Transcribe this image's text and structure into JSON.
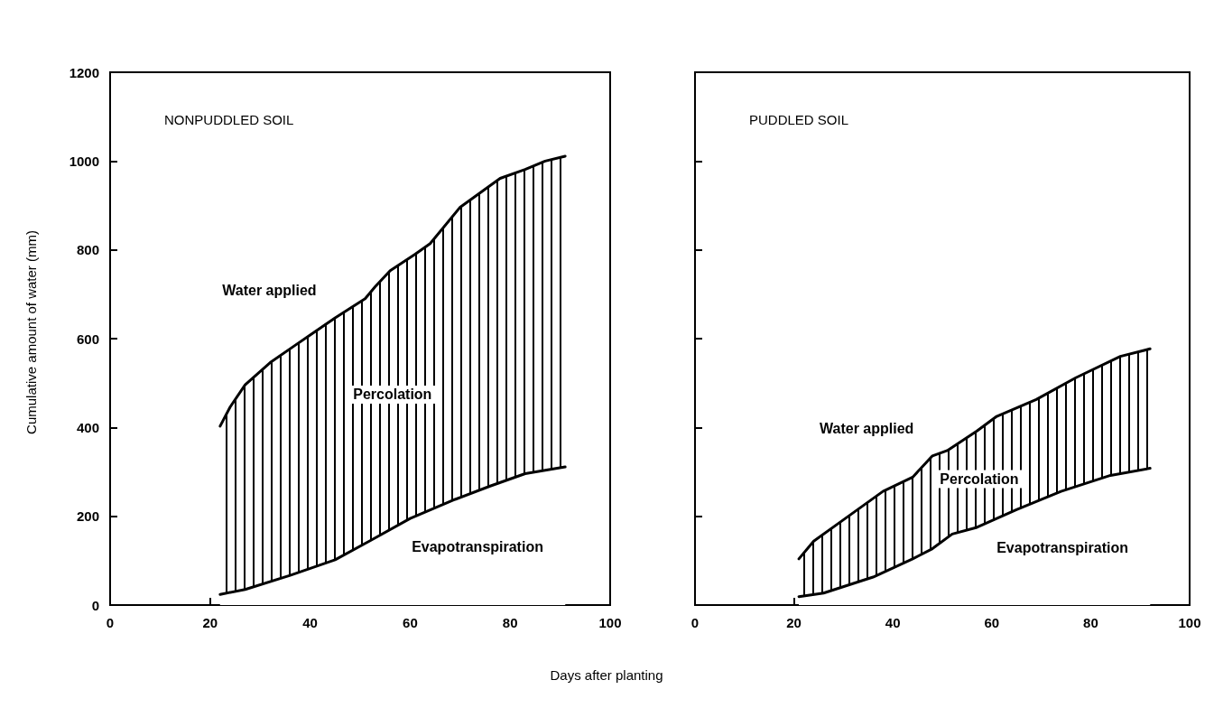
{
  "chart_data": [
    {
      "type": "area",
      "title": "NONPUDDLED SOIL",
      "xlabel": "Days after planting",
      "ylabel": "Cumulative amount of water (mm)",
      "xlim": [
        0,
        100
      ],
      "xticks": [
        0,
        20,
        40,
        60,
        80,
        100
      ],
      "ylim": [
        0,
        1200
      ],
      "yticks": [
        0,
        200,
        400,
        600,
        800,
        1000,
        1200
      ],
      "marker": "none",
      "annotations": [
        "Percolation"
      ],
      "series": [
        {
          "name": "Water applied",
          "color": "#000000",
          "x": [
            22,
            24,
            27,
            32,
            37,
            40,
            45,
            51,
            53,
            56,
            61,
            64,
            70,
            78,
            83,
            87,
            91
          ],
          "values": [
            403,
            446,
            496,
            546,
            585,
            608,
            647,
            690,
            717,
            753,
            790,
            814,
            896,
            961,
            981,
            1000,
            1011
          ]
        },
        {
          "name": "Evapotranspiration",
          "color": "#000000",
          "x": [
            22,
            27,
            36,
            45,
            52,
            60,
            69,
            76,
            83,
            91
          ],
          "values": [
            24,
            35,
            67,
            102,
            145,
            195,
            238,
            268,
            296,
            311
          ]
        }
      ]
    },
    {
      "type": "area",
      "title": "PUDDLED SOIL",
      "xlim": [
        0,
        100
      ],
      "xticks": [
        0,
        20,
        40,
        60,
        80,
        100
      ],
      "ylim": [
        0,
        1200
      ],
      "yticks": [
        {
          "value": 200,
          "label": null
        },
        {
          "value": 400,
          "label": null
        },
        {
          "value": 600,
          "label": null
        },
        {
          "value": 800,
          "label": null
        },
        {
          "value": 1000,
          "label": null
        }
      ],
      "tick_labels": "x",
      "marker": "none",
      "annotations": [
        "Percolation"
      ],
      "series": [
        {
          "name": "Water applied",
          "color": "#000000",
          "x": [
            21,
            24,
            30,
            38,
            44,
            48,
            51,
            57,
            61,
            69,
            77,
            86,
            92
          ],
          "values": [
            104,
            144,
            192,
            256,
            288,
            336,
            348,
            392,
            425,
            463,
            512,
            560,
            577
          ]
        },
        {
          "name": "Evapotranspiration",
          "color": "#000000",
          "x": [
            21,
            26,
            36,
            44,
            48,
            52,
            57,
            65,
            74,
            84,
            92
          ],
          "values": [
            19,
            27,
            63,
            104,
            127,
            160,
            175,
            215,
            256,
            292,
            308
          ]
        }
      ]
    }
  ]
}
